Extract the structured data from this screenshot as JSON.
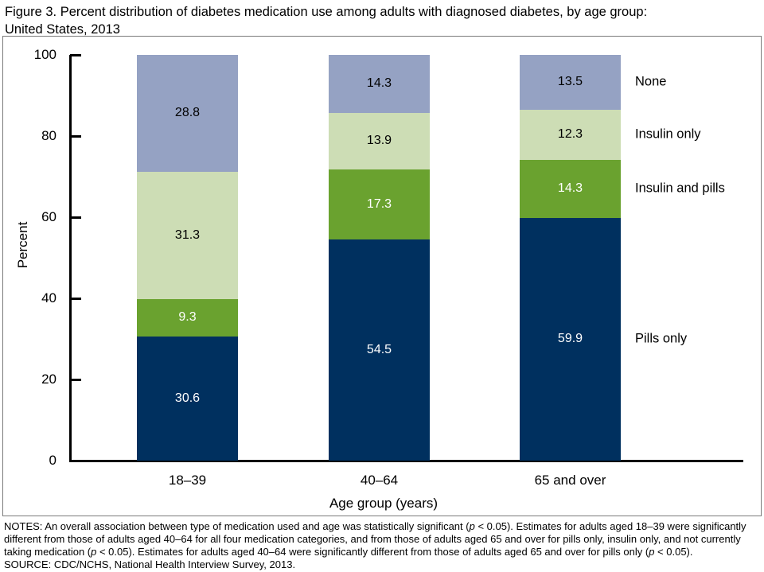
{
  "title": {
    "line1": "Figure 3. Percent distribution of diabetes medication use among adults with diagnosed diabetes, by age group:",
    "line2": "United States, 2013"
  },
  "chart_data": {
    "type": "bar",
    "stacked": true,
    "title": "Percent distribution of diabetes medication use among adults with diagnosed diabetes, by age group: United States, 2013",
    "categories": [
      "18–39",
      "40–64",
      "65 and over"
    ],
    "series": [
      {
        "name": "Pills only",
        "values": [
          30.6,
          54.5,
          59.9
        ],
        "color": "#00305f",
        "label_color": "#ffffff"
      },
      {
        "name": "Insulin and pills",
        "values": [
          9.3,
          17.3,
          14.3
        ],
        "color": "#6aa22f",
        "label_color": "#ffffff"
      },
      {
        "name": "Insulin only",
        "values": [
          31.3,
          13.9,
          12.3
        ],
        "color": "#cdddb5",
        "label_color": "#000000"
      },
      {
        "name": "None",
        "values": [
          28.8,
          14.3,
          13.5
        ],
        "color": "#95a2c3",
        "label_color": "#000000"
      }
    ],
    "xlabel": "Age group (years)",
    "ylabel": "Percent",
    "ylim": [
      0,
      100
    ],
    "yticks": [
      0,
      20,
      40,
      60,
      80,
      100
    ],
    "grid": false,
    "legend_position": "right",
    "value_labels": true,
    "axis_color": "#000000"
  },
  "notes": {
    "paragraph": [
      {
        "text": "NOTES: An overall association between type of medication used and age was statistically significant ("
      },
      {
        "text": "p",
        "italic": true
      },
      {
        "text": " < 0.05). Estimates for adults aged 18–39 were significantly different from those of adults aged 40–64 for all four medication categories, and from those of adults aged 65 and over for pills only, insulin only, and not currently taking medication ("
      },
      {
        "text": "p",
        "italic": true
      },
      {
        "text": " < 0.05). Estimates for adults aged 40–64 were significantly different from those of adults aged 65 and over for pills only ("
      },
      {
        "text": "p",
        "italic": true
      },
      {
        "text": " < 0.05)."
      }
    ],
    "source": "SOURCE: CDC/NCHS, National Health Interview Survey, 2013."
  }
}
